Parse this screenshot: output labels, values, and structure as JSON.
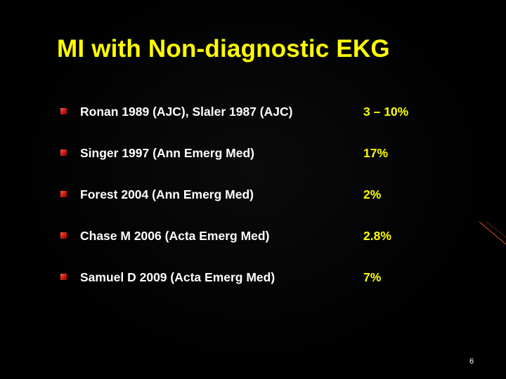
{
  "slide": {
    "title": "MI with Non-diagnostic EKG",
    "page_number": "6",
    "colors": {
      "background": "#000000",
      "title": "#ffff00",
      "study_text": "#ffffff",
      "rate_text": "#ffff00",
      "bullet": "#cc1a10"
    }
  },
  "rows": [
    {
      "study": "Ronan 1989 (AJC), Slaler 1987 (AJC)",
      "rate": "3 – 10%"
    },
    {
      "study": "Singer 1997 (Ann Emerg Med)",
      "rate": "17%"
    },
    {
      "study": "Forest 2004 (Ann Emerg Med)",
      "rate": "2%"
    },
    {
      "study": "Chase M 2006 (Acta Emerg Med)",
      "rate": "2.8%"
    },
    {
      "study": "Samuel D 2009 (Acta Emerg Med)",
      "rate": "7%"
    }
  ]
}
